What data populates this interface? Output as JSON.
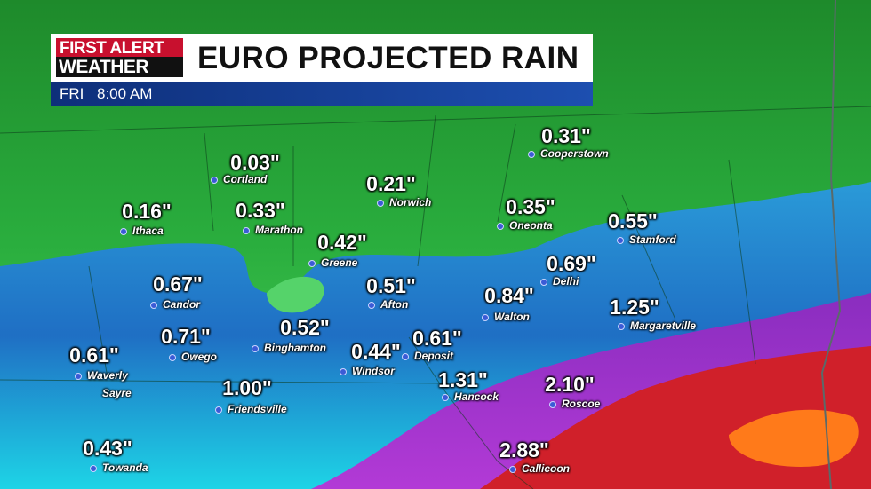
{
  "header": {
    "logo_top": "FIRST ALERT",
    "logo_bottom": "WEATHER",
    "title": "EURO PROJECTED RAIN",
    "day": "FRI",
    "time": "8:00 AM"
  },
  "map": {
    "locations": [
      {
        "names": [
          "Cooperstown"
        ],
        "amount": "0.31\""
      },
      {
        "names": [
          "Cortland"
        ],
        "amount": "0.03\""
      },
      {
        "names": [
          "Norwich"
        ],
        "amount": "0.21\""
      },
      {
        "names": [
          "Ithaca"
        ],
        "amount": "0.16\""
      },
      {
        "names": [
          "Marathon"
        ],
        "amount": "0.33\""
      },
      {
        "names": [
          "Oneonta"
        ],
        "amount": "0.35\""
      },
      {
        "names": [
          "Stamford"
        ],
        "amount": "0.55\""
      },
      {
        "names": [
          "Greene"
        ],
        "amount": "0.42\""
      },
      {
        "names": [
          "Delhi"
        ],
        "amount": "0.69\""
      },
      {
        "names": [
          "Candor"
        ],
        "amount": "0.67\""
      },
      {
        "names": [
          "Afton"
        ],
        "amount": "0.51\""
      },
      {
        "names": [
          "Walton"
        ],
        "amount": "0.84\""
      },
      {
        "names": [
          "Margaretville"
        ],
        "amount": "1.25\""
      },
      {
        "names": [
          "Binghamton"
        ],
        "amount": "0.52\""
      },
      {
        "names": [
          "Owego"
        ],
        "amount": "0.71\""
      },
      {
        "names": [
          "Windsor"
        ],
        "amount": "0.44\""
      },
      {
        "names": [
          "Deposit"
        ],
        "amount": "0.61\""
      },
      {
        "names": [
          "Waverly",
          "Sayre"
        ],
        "amount": "0.61\""
      },
      {
        "names": [
          "Hancock"
        ],
        "amount": "1.31\""
      },
      {
        "names": [
          "Roscoe"
        ],
        "amount": "2.10\""
      },
      {
        "names": [
          "Friendsville"
        ],
        "amount": "1.00\""
      },
      {
        "names": [
          "Towanda"
        ],
        "amount": "0.43\""
      },
      {
        "names": [
          "Callicoon"
        ],
        "amount": "2.88\""
      }
    ]
  }
}
